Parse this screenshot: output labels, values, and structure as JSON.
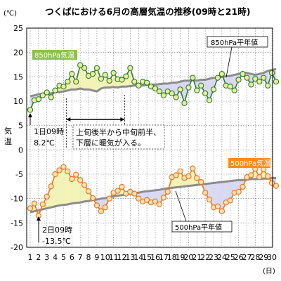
{
  "chart_data": {
    "type": "line",
    "title": "つくばにおける6月の高層気温の推移(09時と21時)",
    "y_unit": "(℃)",
    "ylabel": "気温",
    "x_unit": "(日)",
    "xlim": [
      1,
      30.5
    ],
    "ylim": [
      -20,
      25
    ],
    "y_ticks": [
      25,
      20,
      15,
      10,
      5,
      0,
      -5,
      -10,
      -15,
      -20
    ],
    "x_ticks": [
      1,
      2,
      3,
      4,
      5,
      6,
      7,
      8,
      9,
      10,
      11,
      12,
      13,
      14,
      15,
      16,
      17,
      18,
      19,
      20,
      21,
      22,
      23,
      24,
      25,
      26,
      27,
      28,
      29,
      30
    ],
    "grid": true,
    "x": [
      1,
      1.5,
      2,
      2.5,
      3,
      3.5,
      4,
      4.5,
      5,
      5.5,
      6,
      6.5,
      7,
      7.5,
      8,
      8.5,
      9,
      9.5,
      10,
      10.5,
      11,
      11.5,
      12,
      12.5,
      13,
      13.5,
      14,
      14.5,
      15,
      15.5,
      16,
      16.5,
      17,
      17.5,
      18,
      18.5,
      19,
      19.5,
      20,
      20.5,
      21,
      21.5,
      22,
      22.5,
      23,
      23.5,
      24,
      24.5,
      25,
      25.5,
      26,
      26.5,
      27,
      27.5,
      28,
      28.5,
      29,
      29.5,
      30,
      30.5
    ],
    "series": [
      {
        "name": "850hPa気温",
        "color": "#2e7d32",
        "label_bg": "#8bc34a",
        "marker": "#e6ee9c",
        "warm_fill": "#f3f3b8",
        "cold_fill": "#d9d9f3",
        "values": [
          8.2,
          10.2,
          10.4,
          11.2,
          11.8,
          10.8,
          12.2,
          13.2,
          13.0,
          14.0,
          15.6,
          14.0,
          17.4,
          16.8,
          15.2,
          15.6,
          16.8,
          14.6,
          15.4,
          14.2,
          15.8,
          14.5,
          14.4,
          15.1,
          16.8,
          14.0,
          13.2,
          14.0,
          13.8,
          13.0,
          12.6,
          12.0,
          11.2,
          12.0,
          11.6,
          10.8,
          12.4,
          9.6,
          12.8,
          14.8,
          12.2,
          13.2,
          11.6,
          10.2,
          12.4,
          14.8,
          15.6,
          13.2,
          13.0,
          12.2,
          14.4,
          15.6,
          14.8,
          13.4,
          14.6,
          14.0,
          14.8,
          13.2,
          15.8,
          14.0
        ]
      },
      {
        "name": "850hPa平年値",
        "color": "#8c8c8c",
        "values": [
          11.0,
          11.2,
          11.4,
          11.5,
          11.6,
          11.6,
          11.8,
          11.9,
          12.0,
          12.2,
          12.4,
          12.4,
          12.6,
          12.4,
          12.4,
          12.2,
          12.0,
          12.6,
          12.8,
          12.8,
          12.9,
          12.8,
          13.0,
          13.0,
          13.1,
          13.2,
          13.2,
          13.2,
          13.3,
          13.4,
          13.4,
          13.5,
          13.6,
          13.6,
          13.8,
          13.8,
          14.0,
          14.2,
          14.2,
          14.3,
          14.2,
          14.4,
          14.4,
          14.6,
          14.8,
          14.8,
          15.0,
          15.1,
          15.2,
          15.4,
          15.6,
          15.8,
          15.8,
          15.6,
          15.4,
          15.6,
          15.8,
          16.2,
          16.4,
          16.6
        ]
      },
      {
        "name": "500hPa気温",
        "color": "#e8731c",
        "label_bg": "#ff8c1a",
        "marker": "#ffe0b2",
        "warm_fill": "#f3f3b8",
        "cold_fill": "#d9d9f3",
        "values": [
          -12.0,
          -11.0,
          -13.5,
          -11.2,
          -9.6,
          -7.5,
          -5.0,
          -4.2,
          -3.5,
          -4.4,
          -6.0,
          -5.1,
          -6.2,
          -7.2,
          -8.5,
          -9.9,
          -11.4,
          -12.6,
          -11.8,
          -10.0,
          -8.8,
          -8.4,
          -7.6,
          -9.0,
          -8.6,
          -9.0,
          -10.0,
          -10.6,
          -10.3,
          -10.8,
          -10.6,
          -11.2,
          -9.8,
          -8.6,
          -5.6,
          -5.2,
          -4.4,
          -5.8,
          -5.4,
          -3.8,
          -5.8,
          -6.6,
          -8.8,
          -10.2,
          -11.8,
          -11.6,
          -12.6,
          -10.8,
          -10.4,
          -8.8,
          -8.6,
          -7.6,
          -5.6,
          -5.2,
          -3.9,
          -5.6,
          -4.0,
          -5.4,
          -6.8,
          -7.4
        ]
      },
      {
        "name": "500hPa平年値",
        "color": "#8c8c8c",
        "values": [
          -12.8,
          -12.6,
          -12.4,
          -12.2,
          -12.0,
          -11.8,
          -11.6,
          -11.4,
          -11.3,
          -11.2,
          -11.0,
          -10.9,
          -10.8,
          -10.6,
          -10.5,
          -10.3,
          -10.2,
          -10.0,
          -9.9,
          -9.7,
          -9.6,
          -9.4,
          -9.3,
          -9.2,
          -9.0,
          -8.9,
          -8.8,
          -8.6,
          -8.5,
          -8.4,
          -8.3,
          -8.2,
          -8.0,
          -7.9,
          -7.8,
          -7.7,
          -7.6,
          -7.5,
          -7.4,
          -7.3,
          -7.2,
          -7.1,
          -7.0,
          -6.9,
          -6.8,
          -6.7,
          -6.6,
          -6.5,
          -6.4,
          -6.3,
          -6.2,
          -6.2,
          -6.1,
          -6.0,
          -6.0,
          -6.0,
          -5.9,
          -5.9,
          -5.8,
          -5.8
        ]
      }
    ],
    "annotations": {
      "day1": [
        "1日09時",
        "8.2℃"
      ],
      "day2": [
        "2日09時",
        "-13.5℃"
      ],
      "warm_period": [
        "上旬後半から中旬前半、",
        "下層に暖気が入る。"
      ],
      "warm_period_days": [
        6,
        13
      ]
    }
  }
}
